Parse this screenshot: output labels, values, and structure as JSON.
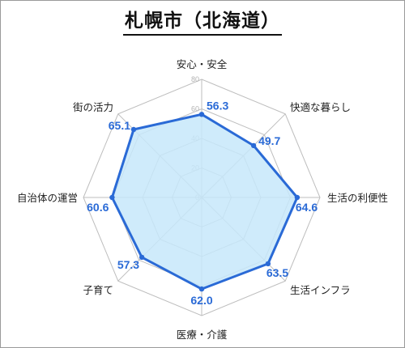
{
  "chart_data": {
    "type": "radar",
    "title": "札幌市（北海道）",
    "categories": [
      "安心・安全",
      "快適な暮らし",
      "生活の利便性",
      "生活インフラ",
      "医療・介護",
      "子育て",
      "自治体の運営",
      "街の活力"
    ],
    "values": [
      56.3,
      49.7,
      64.6,
      63.5,
      62.0,
      57.3,
      60.6,
      65.1
    ],
    "value_labels": [
      "56.3",
      "49.7",
      "64.6",
      "63.5",
      "62.0",
      "57.3",
      "60.6",
      "65.1"
    ],
    "rlim": [
      0,
      80
    ],
    "ticks": [
      0,
      20,
      40,
      60,
      80
    ],
    "tick_labels": [
      "0",
      "20",
      "40",
      "60",
      "80"
    ],
    "grid": true,
    "colors": {
      "line": "#2a6ad6",
      "fill": "#c7e7fa",
      "grid": "#bdbdbd",
      "label": "#2a6ad6"
    }
  }
}
